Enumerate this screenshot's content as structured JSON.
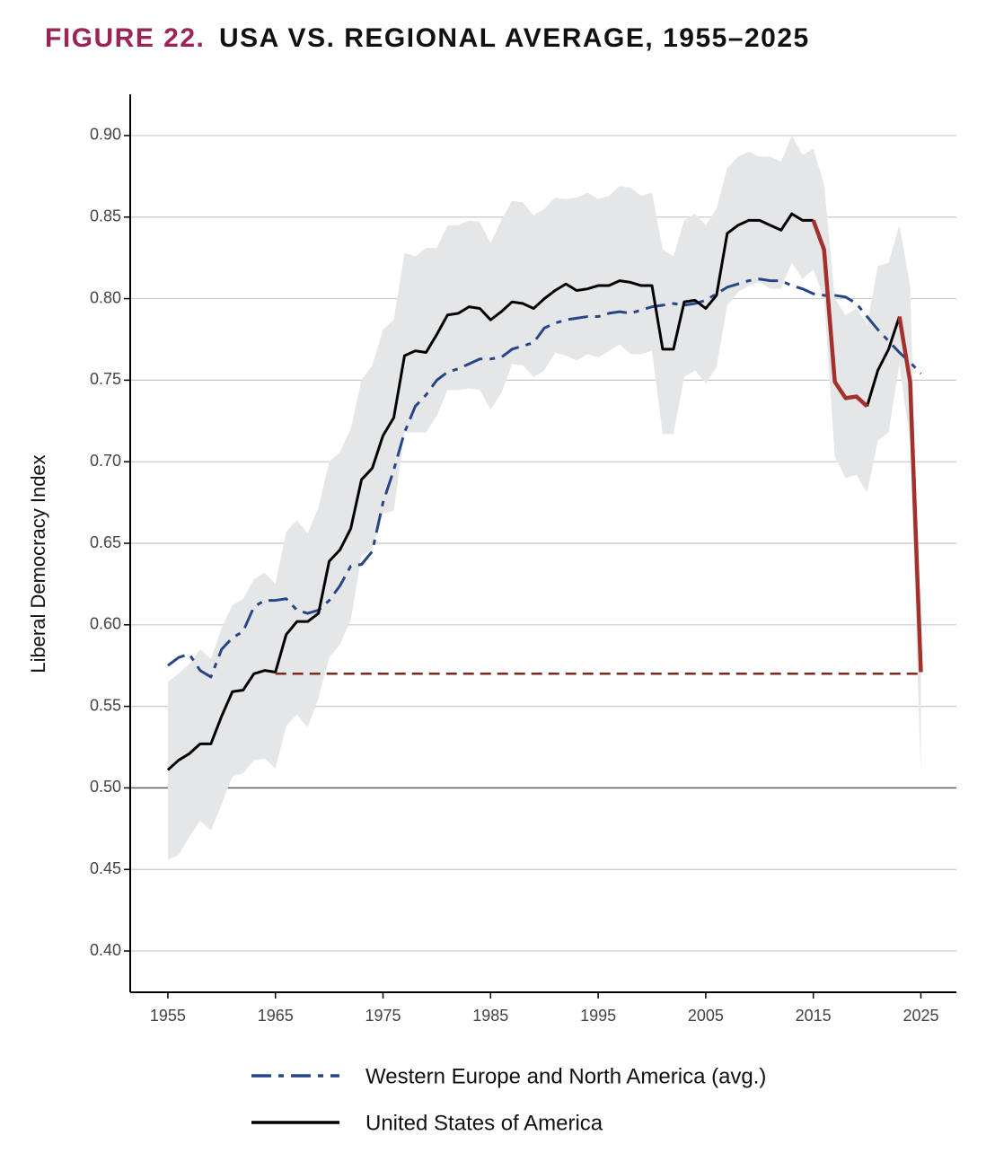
{
  "chart_data": {
    "type": "line",
    "title_prefix": "FIGURE 22.",
    "title": "USA VS. REGIONAL AVERAGE, 1955–2025",
    "y_label": "Liberal Democracy Index",
    "x": [
      1955,
      1956,
      1957,
      1958,
      1959,
      1960,
      1961,
      1962,
      1963,
      1964,
      1965,
      1966,
      1967,
      1968,
      1969,
      1970,
      1971,
      1972,
      1973,
      1974,
      1975,
      1976,
      1977,
      1978,
      1979,
      1980,
      1981,
      1982,
      1983,
      1984,
      1985,
      1986,
      1987,
      1988,
      1989,
      1990,
      1991,
      1992,
      1993,
      1994,
      1995,
      1996,
      1997,
      1998,
      1999,
      2000,
      2001,
      2002,
      2003,
      2004,
      2005,
      2006,
      2007,
      2008,
      2009,
      2010,
      2011,
      2012,
      2013,
      2014,
      2015,
      2016,
      2017,
      2018,
      2019,
      2020,
      2021,
      2022,
      2023,
      2024,
      2025
    ],
    "band": {
      "color": "#e5e6e8",
      "lower": [
        0.456,
        0.459,
        0.47,
        0.48,
        0.474,
        0.49,
        0.507,
        0.509,
        0.517,
        0.518,
        0.512,
        0.538,
        0.545,
        0.537,
        0.555,
        0.58,
        0.588,
        0.603,
        0.642,
        0.647,
        0.668,
        0.67,
        0.718,
        0.718,
        0.718,
        0.728,
        0.744,
        0.744,
        0.745,
        0.744,
        0.732,
        0.742,
        0.76,
        0.759,
        0.752,
        0.756,
        0.767,
        0.765,
        0.762,
        0.766,
        0.764,
        0.768,
        0.772,
        0.766,
        0.766,
        0.768,
        0.717,
        0.717,
        0.752,
        0.756,
        0.748,
        0.758,
        0.796,
        0.804,
        0.808,
        0.81,
        0.806,
        0.806,
        0.822,
        0.812,
        0.818,
        0.8,
        0.703,
        0.69,
        0.692,
        0.681,
        0.713,
        0.718,
        0.76,
        0.712,
        0.508
      ],
      "upper": [
        0.565,
        0.57,
        0.576,
        0.585,
        0.579,
        0.598,
        0.612,
        0.616,
        0.628,
        0.632,
        0.625,
        0.657,
        0.664,
        0.656,
        0.672,
        0.7,
        0.706,
        0.72,
        0.75,
        0.759,
        0.781,
        0.787,
        0.828,
        0.826,
        0.831,
        0.831,
        0.845,
        0.845,
        0.848,
        0.847,
        0.834,
        0.848,
        0.86,
        0.859,
        0.851,
        0.855,
        0.862,
        0.861,
        0.862,
        0.865,
        0.861,
        0.863,
        0.869,
        0.868,
        0.863,
        0.865,
        0.83,
        0.826,
        0.848,
        0.852,
        0.845,
        0.855,
        0.88,
        0.887,
        0.89,
        0.887,
        0.887,
        0.884,
        0.9,
        0.888,
        0.892,
        0.87,
        0.8,
        0.79,
        0.794,
        0.784,
        0.82,
        0.822,
        0.845,
        0.808,
        0.575
      ]
    },
    "series": [
      {
        "name": "Western Europe and North America (avg.)",
        "color": "#27468a",
        "style": "dashdot",
        "values": [
          0.575,
          0.58,
          0.582,
          0.572,
          0.568,
          0.585,
          0.592,
          0.596,
          0.611,
          0.615,
          0.615,
          0.616,
          0.609,
          0.607,
          0.609,
          0.615,
          0.624,
          0.636,
          0.637,
          0.645,
          0.675,
          0.695,
          0.718,
          0.734,
          0.741,
          0.75,
          0.755,
          0.757,
          0.76,
          0.763,
          0.763,
          0.764,
          0.769,
          0.771,
          0.773,
          0.782,
          0.785,
          0.787,
          0.788,
          0.789,
          0.789,
          0.791,
          0.792,
          0.791,
          0.793,
          0.795,
          0.796,
          0.797,
          0.796,
          0.797,
          0.799,
          0.803,
          0.807,
          0.809,
          0.811,
          0.812,
          0.811,
          0.811,
          0.808,
          0.806,
          0.803,
          0.802,
          0.802,
          0.801,
          0.797,
          0.789,
          0.781,
          0.774,
          0.767,
          0.761,
          0.754
        ]
      },
      {
        "name": "United States of America",
        "color": "#000000",
        "style": "solid",
        "values": [
          0.511,
          0.517,
          0.521,
          0.527,
          0.527,
          0.544,
          0.559,
          0.56,
          0.57,
          0.572,
          0.571,
          0.594,
          0.602,
          0.602,
          0.607,
          0.639,
          0.646,
          0.659,
          0.689,
          0.696,
          0.716,
          0.727,
          0.765,
          0.768,
          0.767,
          0.778,
          0.79,
          0.791,
          0.795,
          0.794,
          0.787,
          0.792,
          0.798,
          0.797,
          0.794,
          0.8,
          0.805,
          0.809,
          0.805,
          0.806,
          0.808,
          0.808,
          0.811,
          0.81,
          0.808,
          0.808,
          0.769,
          0.769,
          0.798,
          0.799,
          0.794,
          0.802,
          0.84,
          0.845,
          0.848,
          0.848,
          0.845,
          0.842,
          0.852,
          0.848,
          0.848,
          null,
          null,
          null,
          null,
          0.734,
          0.756,
          0.769,
          0.789,
          null,
          null
        ]
      }
    ],
    "highlight": {
      "color": "#a3302b",
      "values": [
        null,
        null,
        null,
        null,
        null,
        null,
        null,
        null,
        null,
        null,
        null,
        null,
        null,
        null,
        null,
        null,
        null,
        null,
        null,
        null,
        null,
        null,
        null,
        null,
        null,
        null,
        null,
        null,
        null,
        null,
        null,
        null,
        null,
        null,
        null,
        null,
        null,
        null,
        null,
        null,
        null,
        null,
        null,
        null,
        null,
        null,
        null,
        null,
        null,
        null,
        null,
        null,
        null,
        null,
        null,
        null,
        null,
        null,
        null,
        null,
        0.848,
        0.83,
        0.749,
        0.739,
        0.74,
        0.734,
        null,
        null,
        0.789,
        0.749,
        0.571
      ]
    },
    "reference": {
      "color": "#7a2a20",
      "x": [
        1965,
        2025
      ],
      "values": [
        0.57,
        0.57
      ]
    },
    "hline": 0.5,
    "xlim": [
      1951.5,
      2028.3
    ],
    "ylim": [
      0.3747,
      0.9253
    ],
    "xticks": [
      1955,
      1965,
      1975,
      1985,
      1995,
      2005,
      2015,
      2025
    ],
    "yticks": [
      {
        "value": 0.4,
        "label": "0.40"
      },
      {
        "value": 0.45,
        "label": "0.45"
      },
      {
        "value": 0.5,
        "label": "0.50"
      },
      {
        "value": 0.55,
        "label": "0.55"
      },
      {
        "value": 0.6,
        "label": "0.60"
      },
      {
        "value": 0.65,
        "label": "0.65"
      },
      {
        "value": 0.7,
        "label": "0.70"
      },
      {
        "value": 0.75,
        "label": "0.75"
      },
      {
        "value": 0.8,
        "label": "0.80"
      },
      {
        "value": 0.85,
        "label": "0.85"
      },
      {
        "value": 0.9,
        "label": "0.90"
      }
    ],
    "grid": true
  }
}
